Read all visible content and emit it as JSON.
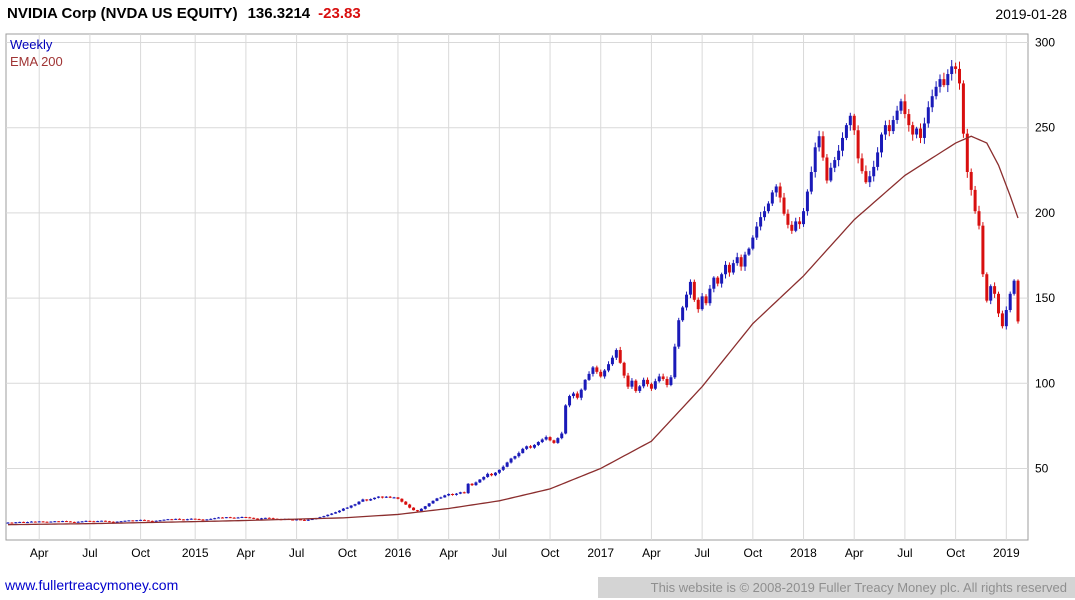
{
  "header": {
    "title": "NVIDIA Corp (NVDA US EQUITY)",
    "price": "136.3214",
    "change": "-23.83",
    "date": "2019-01-28"
  },
  "legend": {
    "series1": "Weekly",
    "series2": "EMA 200"
  },
  "footer": {
    "link": "www.fullertreacymoney.com",
    "copyright": "This website is © 2008-2019 Fuller Treacy Money plc. All rights reserved"
  },
  "chart_data": {
    "type": "candlestick",
    "title": "NVIDIA Corp (NVDA US EQUITY)",
    "frequency": "Weekly",
    "last_price": 136.3214,
    "last_change": -23.83,
    "grid": true,
    "legend_position": "top-left",
    "y_axis": {
      "side": "right",
      "ticks": [
        50,
        100,
        150,
        200,
        250,
        300
      ],
      "range": [
        8,
        305
      ]
    },
    "x_ticks": [
      {
        "label": "Apr",
        "week": 8
      },
      {
        "label": "Jul",
        "week": 21
      },
      {
        "label": "Oct",
        "week": 34
      },
      {
        "label": "2015",
        "week": 48
      },
      {
        "label": "Apr",
        "week": 61
      },
      {
        "label": "Jul",
        "week": 74
      },
      {
        "label": "Oct",
        "week": 87
      },
      {
        "label": "2016",
        "week": 100
      },
      {
        "label": "Apr",
        "week": 113
      },
      {
        "label": "Jul",
        "week": 126
      },
      {
        "label": "Oct",
        "week": 139
      },
      {
        "label": "2017",
        "week": 152
      },
      {
        "label": "Apr",
        "week": 165
      },
      {
        "label": "Jul",
        "week": 178
      },
      {
        "label": "Oct",
        "week": 191
      },
      {
        "label": "2018",
        "week": 204
      },
      {
        "label": "Apr",
        "week": 217
      },
      {
        "label": "Jul",
        "week": 230
      },
      {
        "label": "Oct",
        "week": 243
      },
      {
        "label": "2019",
        "week": 256
      }
    ],
    "weekly_closes": [
      18.2,
      18.0,
      18.4,
      18.6,
      18.3,
      18.5,
      18.8,
      18.6,
      18.9,
      18.7,
      18.5,
      18.8,
      19.0,
      18.8,
      19.1,
      18.9,
      18.6,
      18.4,
      18.7,
      18.9,
      19.2,
      19.0,
      18.8,
      19.1,
      19.3,
      19.0,
      18.7,
      18.5,
      18.8,
      19.0,
      19.3,
      19.5,
      19.2,
      19.6,
      19.8,
      19.5,
      19.2,
      18.9,
      19.3,
      19.6,
      19.9,
      20.2,
      20.0,
      20.4,
      20.1,
      19.8,
      20.2,
      20.5,
      20.3,
      20.0,
      19.7,
      20.1,
      20.4,
      20.8,
      21.2,
      21.0,
      21.4,
      21.1,
      20.8,
      21.2,
      21.5,
      21.3,
      21.0,
      20.6,
      20.3,
      20.7,
      21.0,
      20.8,
      20.5,
      20.2,
      19.9,
      20.3,
      20.0,
      19.7,
      20.1,
      19.8,
      19.5,
      19.9,
      20.3,
      20.8,
      21.4,
      22.0,
      22.8,
      23.5,
      24.3,
      25.2,
      26.4,
      27.0,
      28.2,
      29.0,
      30.5,
      31.8,
      31.2,
      32.0,
      32.8,
      33.5,
      32.9,
      33.4,
      32.8,
      33.0,
      32.2,
      30.5,
      28.8,
      27.0,
      25.5,
      24.9,
      26.3,
      27.8,
      29.5,
      31.0,
      32.4,
      33.0,
      34.2,
      35.0,
      34.5,
      35.2,
      36.0,
      35.5,
      41.0,
      40.2,
      41.8,
      43.5,
      45.0,
      46.8,
      46.0,
      47.5,
      49.2,
      51.0,
      53.5,
      55.8,
      57.2,
      59.0,
      61.5,
      63.0,
      62.2,
      63.8,
      65.5,
      67.0,
      68.4,
      66.5,
      65.0,
      67.8,
      70.5,
      87.0,
      92.5,
      94.0,
      91.5,
      96.2,
      102.0,
      105.5,
      109.3,
      106.7,
      104.0,
      107.5,
      111.2,
      115.0,
      119.5,
      112.0,
      104.5,
      98.0,
      101.5,
      95.5,
      98.2,
      102.0,
      99.5,
      96.8,
      101.2,
      104.0,
      102.5,
      99.0,
      103.5,
      121.5,
      137.0,
      144.5,
      152.0,
      159.5,
      149.0,
      143.5,
      151.0,
      147.0,
      155.5,
      162.0,
      158.5,
      164.0,
      169.5,
      165.0,
      170.5,
      174.0,
      168.5,
      175.5,
      179.0,
      185.5,
      192.0,
      197.5,
      201.0,
      205.5,
      212.0,
      215.5,
      209.0,
      199.5,
      193.0,
      189.5,
      195.0,
      193.4,
      201.0,
      212.5,
      224.0,
      238.5,
      245.0,
      232.5,
      219.0,
      226.5,
      231.0,
      236.5,
      244.0,
      251.5,
      257.0,
      248.5,
      232.0,
      224.5,
      218.0,
      221.5,
      227.0,
      235.5,
      246.0,
      251.5,
      248.0,
      254.5,
      260.0,
      265.5,
      258.0,
      251.5,
      246.0,
      249.5,
      244.0,
      252.5,
      262.0,
      268.5,
      274.0,
      278.5,
      275.0,
      281.5,
      286.0,
      284.5,
      276.0,
      246.5,
      224.0,
      213.5,
      201.0,
      192.5,
      164.0,
      148.5,
      157.0,
      152.5,
      141.0,
      133.5,
      143.0,
      152.5,
      160.2,
      136.3
    ],
    "ema_200": {
      "name": "EMA 200",
      "anchors": [
        [
          0,
          17.0
        ],
        [
          21,
          17.6
        ],
        [
          48,
          18.8
        ],
        [
          60,
          19.4
        ],
        [
          73,
          20.2
        ],
        [
          86,
          21.0
        ],
        [
          100,
          23.0
        ],
        [
          113,
          26.5
        ],
        [
          126,
          31.0
        ],
        [
          139,
          38.0
        ],
        [
          152,
          50.0
        ],
        [
          165,
          66.0
        ],
        [
          178,
          98.0
        ],
        [
          191,
          135.0
        ],
        [
          204,
          163.0
        ],
        [
          217,
          196.0
        ],
        [
          230,
          222.0
        ],
        [
          243,
          241.0
        ],
        [
          247,
          245.0
        ],
        [
          251,
          241.0
        ],
        [
          254,
          228.0
        ],
        [
          257,
          210.0
        ],
        [
          259,
          197.0
        ]
      ]
    },
    "colors": {
      "up": "#1a1ab8",
      "down": "#d80f0f",
      "ema": "#8b2e2e",
      "grid": "#d9d9d9",
      "border": "#9c9c9c",
      "link": "#0000cc",
      "change": "#d80f0f",
      "legend_weekly": "#0000bb",
      "legend_ema": "#a03434"
    }
  }
}
